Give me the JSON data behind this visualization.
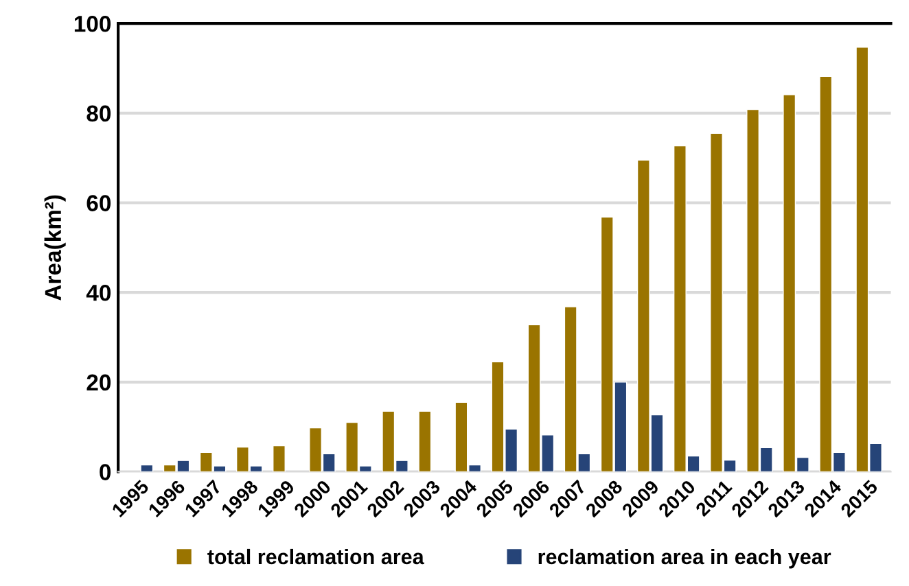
{
  "chart_data": {
    "type": "bar",
    "ylabel": "Area(km²)",
    "categories": [
      "1995",
      "1996",
      "1997",
      "1998",
      "1999",
      "2000",
      "2001",
      "2002",
      "2003",
      "2004",
      "2005",
      "2006",
      "2007",
      "2008",
      "2009",
      "2010",
      "2011",
      "2012",
      "2013",
      "2014",
      "2015"
    ],
    "series": [
      {
        "name": "total reclamation area",
        "color": "#9a7400",
        "values": [
          null,
          1.5,
          4.3,
          5.5,
          5.8,
          9.8,
          11,
          13.5,
          13.5,
          15.5,
          24.5,
          32.8,
          36.8,
          56.8,
          69.5,
          72.7,
          75.5,
          80.8,
          84.1,
          88.2,
          94.7
        ]
      },
      {
        "name": "reclamation area in each year",
        "color": "#264478",
        "values": [
          1.5,
          2.5,
          1.3,
          1.3,
          null,
          4,
          1.3,
          2.5,
          null,
          1.5,
          9.5,
          8.2,
          4,
          20,
          12.7,
          3.5,
          2.6,
          5.4,
          3.2,
          4.3,
          6.3
        ]
      }
    ],
    "ylim": [
      0,
      100
    ],
    "yticks": [
      0,
      20,
      40,
      60,
      80,
      100
    ],
    "grid": "y",
    "legend": "bottom"
  }
}
